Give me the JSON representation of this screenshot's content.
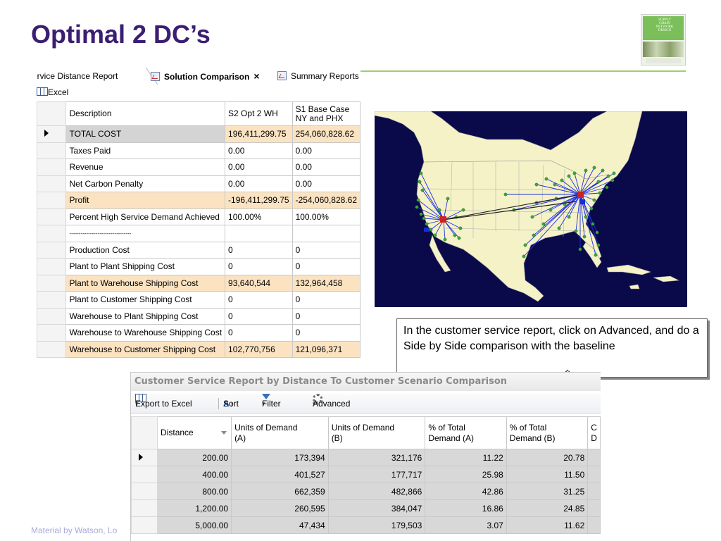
{
  "slide": {
    "title": "Optimal 2 DC’s",
    "footer": "Material by Watson, Lo"
  },
  "logo": {
    "text": "SUPPLY\nCHAIN\nNETWORK\nDESIGN"
  },
  "solution_comparison": {
    "tabs": [
      "ervice Distance Report",
      "Solution Comparison",
      "Summary Reports"
    ],
    "close_glyph": "×",
    "toolbar": {
      "excel_label": "Excel"
    },
    "headers": {
      "description": "Description",
      "s2": "S2 Opt 2 WH",
      "s1_line1": "S1 Base Case",
      "s1_line2": "NY and PHX"
    },
    "rows": [
      {
        "description": "TOTAL COST",
        "s2": "196,411,299.75",
        "s1": "254,060,828.62"
      },
      {
        "description": "Taxes Paid",
        "s2": "0.00",
        "s1": "0.00"
      },
      {
        "description": "Revenue",
        "s2": "0.00",
        "s1": "0.00"
      },
      {
        "description": "Net Carbon Penalty",
        "s2": "0.00",
        "s1": "0.00"
      },
      {
        "description": "Profit",
        "s2": "-196,411,299.75",
        "s1": "-254,060,828.62"
      },
      {
        "description": "Percent High Service Demand Achieved",
        "s2": "100.00%",
        "s1": "100.00%"
      },
      {
        "description": "---------------------------------",
        "s2": "",
        "s1": ""
      },
      {
        "description": "Production Cost",
        "s2": "0",
        "s1": "0"
      },
      {
        "description": "Plant to Plant Shipping Cost",
        "s2": "0",
        "s1": "0"
      },
      {
        "description": "Plant to Warehouse Shipping Cost",
        "s2": "93,640,544",
        "s1": "132,964,458"
      },
      {
        "description": "Plant to Customer Shipping Cost",
        "s2": "0",
        "s1": "0"
      },
      {
        "description": "Warehouse to Plant Shipping Cost",
        "s2": "0",
        "s1": "0"
      },
      {
        "description": "Warehouse to Warehouse Shipping Cost",
        "s2": "0",
        "s1": "0"
      },
      {
        "description": "Warehouse to Customer Shipping Cost",
        "s2": "102,770,756",
        "s1": "121,096,371"
      }
    ]
  },
  "callout": {
    "text": "In the customer service report, click on Advanced, and do a Side by Side comparison with the baseline"
  },
  "customer_service": {
    "title": "Customer Service Report by Distance To Customer Scenario Comparison",
    "toolbar": {
      "export_label": "Export to Excel",
      "sort_label": "Sort",
      "filter_label": "Filter",
      "advanced_label": "Advanced",
      "dropdown_glyph": "▾"
    },
    "headers": {
      "distance": "Distance",
      "units_a_1": "Units of Demand",
      "units_a_2": "(A)",
      "units_b_1": "Units of Demand",
      "units_b_2": "(B)",
      "pct_a_1": "% of Total",
      "pct_a_2": "Demand (A)",
      "pct_b_1": "% of Total",
      "pct_b_2": "Demand (B)",
      "more_1": "C",
      "more_2": "D"
    },
    "rows": [
      {
        "distance": "200.00",
        "units_a": "173,394",
        "units_b": "321,176",
        "pct_a": "11.22",
        "pct_b": "20.78"
      },
      {
        "distance": "400.00",
        "units_a": "401,527",
        "units_b": "177,717",
        "pct_a": "25.98",
        "pct_b": "11.50"
      },
      {
        "distance": "800.00",
        "units_a": "662,359",
        "units_b": "482,866",
        "pct_a": "42.86",
        "pct_b": "31.25"
      },
      {
        "distance": "1,200.00",
        "units_a": "260,595",
        "units_b": "384,047",
        "pct_a": "16.86",
        "pct_b": "24.85"
      },
      {
        "distance": "5,000.00",
        "units_a": "47,434",
        "units_b": "179,503",
        "pct_a": "3.07",
        "pct_b": "11.62"
      }
    ]
  },
  "colors": {
    "title": "#3b1e73",
    "accent_line": "#9dcf6a",
    "highlight_row": "#fbe3c2",
    "map_ocean": "#0a0a4a",
    "map_land": "#f5f2c8",
    "flow_line": "#2030e0",
    "customer_dot": "#3aa83a"
  }
}
